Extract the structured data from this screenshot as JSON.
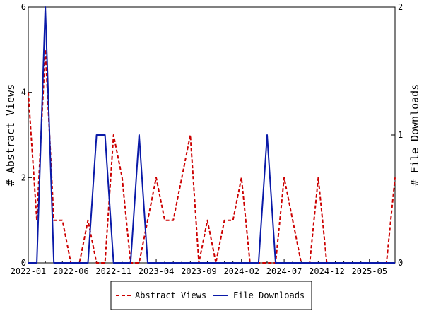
{
  "chart_data": {
    "type": "line",
    "ylabel_left": "# Abstract Views",
    "ylabel_right": "# File Downloads",
    "x_tick_labels": [
      "2022-01",
      "2022-06",
      "2022-11",
      "2023-04",
      "2023-09",
      "2024-02",
      "2024-07",
      "2024-12",
      "2025-05"
    ],
    "x_tick_months": [
      0,
      5,
      10,
      15,
      20,
      25,
      30,
      35,
      40
    ],
    "x_range_months": [
      0,
      43
    ],
    "y_left_range": [
      0,
      6
    ],
    "y_left_ticks": [
      0,
      2,
      4,
      6
    ],
    "y_right_range": [
      0,
      2
    ],
    "y_right_ticks": [
      0,
      1,
      2
    ],
    "grid": false,
    "legend_position": "bottom",
    "series": [
      {
        "name": "Abstract Views",
        "axis": "left",
        "color": "#cc0000",
        "dash": "dashed",
        "months": [
          0,
          1,
          2,
          3,
          4,
          5,
          6,
          7,
          8,
          9,
          10,
          11,
          12,
          13,
          14,
          15,
          16,
          17,
          18,
          19,
          20,
          21,
          22,
          23,
          24,
          25,
          26,
          27,
          28,
          29,
          30,
          31,
          32,
          33,
          34,
          35,
          36,
          37,
          38,
          39,
          40,
          41,
          42,
          43
        ],
        "values": [
          4,
          1,
          5,
          1,
          1,
          0,
          0,
          1,
          0,
          0,
          3,
          2,
          0,
          0,
          1,
          2,
          1,
          1,
          2,
          3,
          0,
          1,
          0,
          1,
          1,
          2,
          0,
          0,
          0,
          0,
          2,
          1,
          0,
          0,
          2,
          0,
          0,
          0,
          0,
          0,
          0,
          0,
          0,
          2
        ]
      },
      {
        "name": "File Downloads",
        "axis": "right",
        "color": "#0a1aa8",
        "dash": "solid",
        "points": [
          [
            0,
            0
          ],
          [
            1,
            0
          ],
          [
            2,
            2
          ],
          [
            3,
            0
          ],
          [
            4,
            0
          ],
          [
            5,
            0
          ],
          [
            6,
            0
          ],
          [
            7,
            0
          ],
          [
            8,
            1
          ],
          [
            9,
            1
          ],
          [
            10,
            0
          ],
          [
            11,
            0
          ],
          [
            12,
            0
          ],
          [
            13,
            1
          ],
          [
            14,
            0
          ],
          [
            15,
            0
          ],
          [
            16,
            0
          ],
          [
            17,
            0
          ],
          [
            18,
            0
          ],
          [
            19,
            0
          ],
          [
            20,
            0
          ],
          [
            21,
            0
          ],
          [
            22,
            0
          ],
          [
            23,
            0
          ],
          [
            24,
            0
          ],
          [
            25,
            0
          ],
          [
            26,
            0
          ],
          [
            27,
            0
          ],
          [
            28,
            1
          ],
          [
            29,
            0
          ],
          [
            30,
            0
          ],
          [
            31,
            0
          ],
          [
            32,
            0
          ],
          [
            33,
            0
          ],
          [
            34,
            0
          ],
          [
            35,
            0
          ],
          [
            36,
            0
          ],
          [
            37,
            0
          ],
          [
            38,
            0
          ],
          [
            39,
            0
          ],
          [
            40,
            0
          ],
          [
            41,
            0
          ],
          [
            42,
            0
          ],
          [
            43,
            0
          ]
        ]
      }
    ]
  }
}
